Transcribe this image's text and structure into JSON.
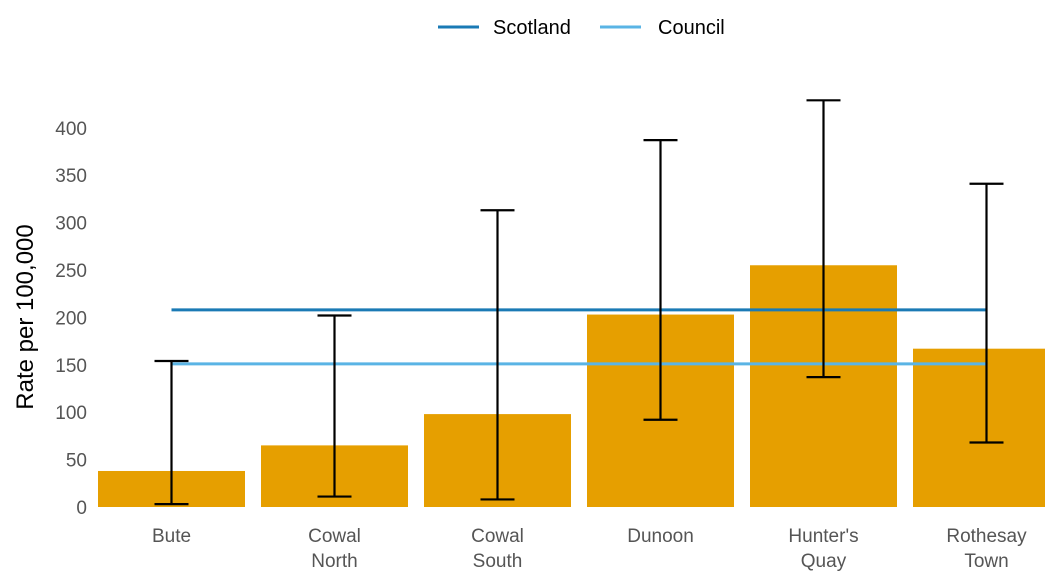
{
  "chart_data": {
    "type": "bar",
    "categories": [
      [
        "Bute"
      ],
      [
        "Cowal",
        "North"
      ],
      [
        "Cowal",
        "South"
      ],
      [
        "Dunoon"
      ],
      [
        "Hunter's",
        "Quay"
      ],
      [
        "Rothesay",
        "Town"
      ]
    ],
    "values": [
      38,
      65,
      98,
      203,
      255,
      167
    ],
    "error_bars": {
      "lower": [
        3,
        11,
        8,
        92,
        137,
        68
      ],
      "upper": [
        154,
        202,
        313,
        387,
        429,
        341
      ]
    },
    "reference_lines": [
      {
        "name": "Scotland",
        "value": 208,
        "color": "#1a7ab5"
      },
      {
        "name": "Council",
        "value": 151,
        "color": "#5ab4e5"
      }
    ],
    "ylabel": "Rate per 100,000",
    "ylim": [
      0,
      430
    ],
    "yticks": [
      0,
      50,
      100,
      150,
      200,
      250,
      300,
      350,
      400
    ],
    "grid": false,
    "legend_position": "top-center",
    "colors": {
      "bar": "#E69F00",
      "error_bar": "#000000"
    }
  }
}
